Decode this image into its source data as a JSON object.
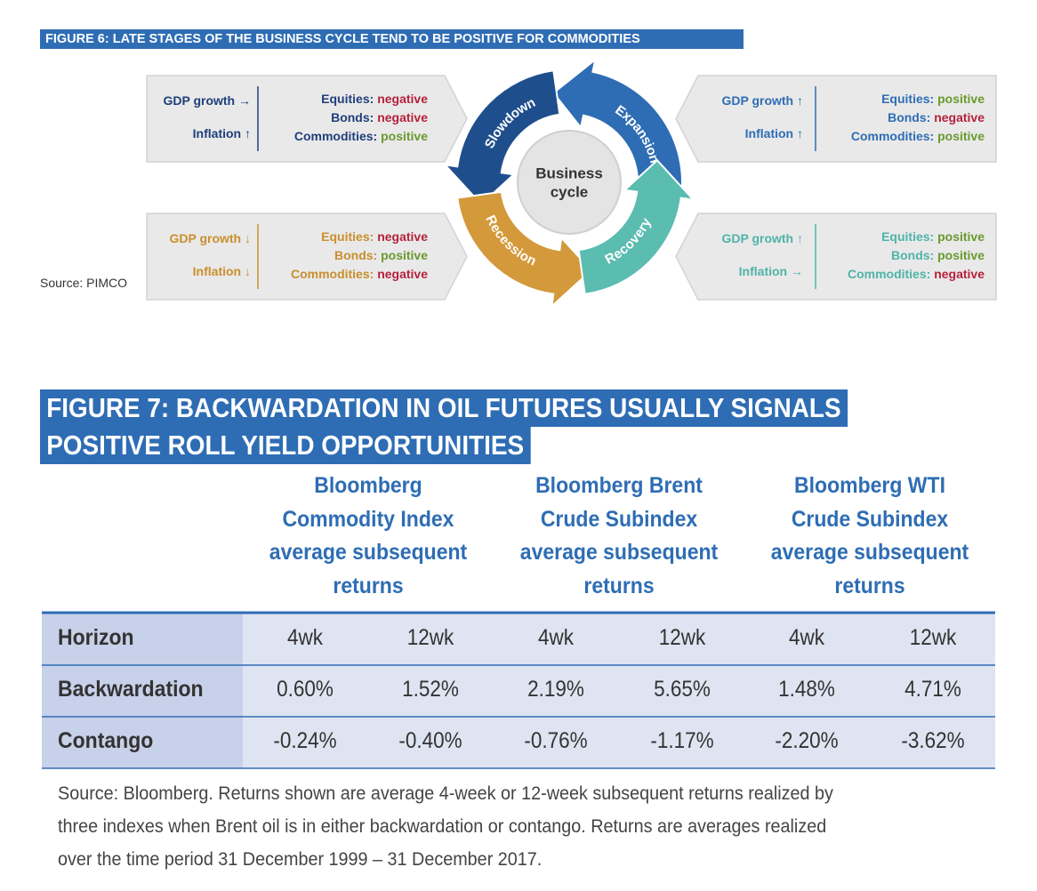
{
  "figure6": {
    "title": "FIGURE 6: LATE STAGES OF THE BUSINESS CYCLE TEND TO BE POSITIVE FOR COMMODITIES",
    "source": "Source: PIMCO",
    "center": [
      "Business",
      "cycle"
    ],
    "phases": [
      "Expansion",
      "Slowdown",
      "Recession",
      "Recovery"
    ],
    "panels": [
      {
        "gdp": "GDP growth →",
        "inflation": "Inflation ↑",
        "assets": [
          {
            "name": "Equities:",
            "view": "negative"
          },
          {
            "name": "Bonds:",
            "view": "negative"
          },
          {
            "name": "Commodities:",
            "view": "positive"
          }
        ]
      },
      {
        "gdp": "GDP growth ↑",
        "inflation": "Inflation ↑",
        "assets": [
          {
            "name": "Equities:",
            "view": "positive"
          },
          {
            "name": "Bonds:",
            "view": "negative"
          },
          {
            "name": "Commodities:",
            "view": "positive"
          }
        ]
      },
      {
        "gdp": "GDP growth ↓",
        "inflation": "Inflation ↓",
        "assets": [
          {
            "name": "Equities:",
            "view": "negative"
          },
          {
            "name": "Bonds:",
            "view": "positive"
          },
          {
            "name": "Commodities:",
            "view": "negative"
          }
        ]
      },
      {
        "gdp": "GDP growth ↑",
        "inflation": "Inflation →",
        "assets": [
          {
            "name": "Equities:",
            "view": "positive"
          },
          {
            "name": "Bonds:",
            "view": "positive"
          },
          {
            "name": "Commodities:",
            "view": "negative"
          }
        ]
      }
    ]
  },
  "figure7": {
    "title": [
      "FIGURE 7: BACKWARDATION IN OIL FUTURES USUALLY SIGNALS",
      "POSITIVE ROLL YIELD OPPORTUNITIES"
    ],
    "columns": [
      [
        "Bloomberg",
        "Commodity Index",
        "average subsequent",
        "returns"
      ],
      [
        "Bloomberg Brent",
        "Crude Subindex",
        "average subsequent",
        "returns"
      ],
      [
        "Bloomberg WTI",
        "Crude Subindex",
        "average subsequent",
        "returns"
      ]
    ],
    "rows": [
      [
        "Horizon",
        "4wk",
        "12wk",
        "4wk",
        "12wk",
        "4wk",
        "12wk"
      ],
      [
        "Backwardation",
        "0.60%",
        "1.52%",
        "2.19%",
        "5.65%",
        "1.48%",
        "4.71%"
      ],
      [
        "Contango",
        "-0.24%",
        "-0.40%",
        "-0.76%",
        "-1.17%",
        "-2.20%",
        "-3.62%"
      ]
    ],
    "note": [
      "Source: Bloomberg. Returns shown are average 4-week or 12-week subsequent returns realized by",
      "three indexes when Brent oil is in either backwardation or contango. Returns are averages realized",
      "over the time period 31 December 1999 – 31 December 2017."
    ]
  }
}
